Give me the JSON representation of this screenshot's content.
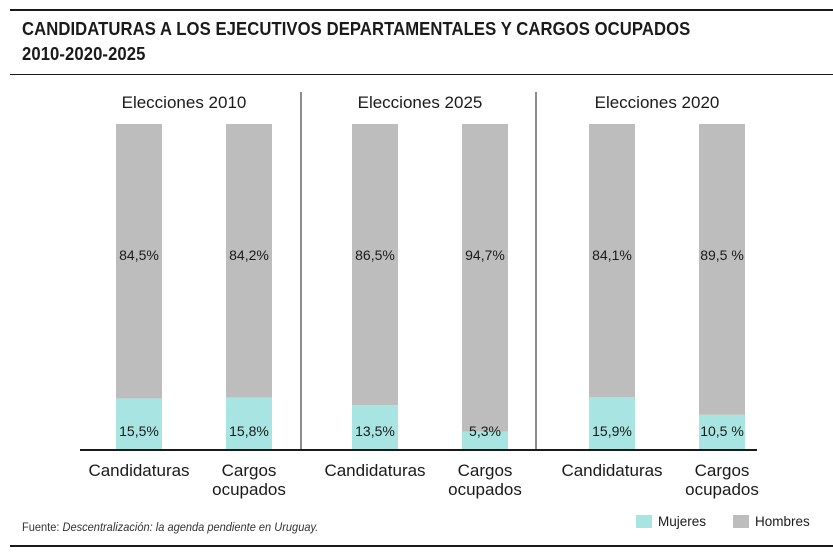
{
  "title": {
    "line1": "CANDIDATURAS A LOS EJECUTIVOS DEPARTAMENTALES Y CARGOS OCUPADOS",
    "line2": "2010-2020-2025"
  },
  "colors": {
    "mujeres": "#a8e4e1",
    "hombres": "#bdbdbd",
    "text": "#1a1a1a"
  },
  "chart_data": {
    "type": "bar",
    "stacked": true,
    "percent": true,
    "series_names": [
      "Mujeres",
      "Hombres"
    ],
    "groups": [
      {
        "title": "Elecciones 2010",
        "bars": [
          {
            "label": [
              "Candidaturas"
            ],
            "mujeres": 15.5,
            "hombres": 84.5,
            "mujeres_label": "15,5%",
            "hombres_label": "84,5%"
          },
          {
            "label": [
              "Cargos",
              "ocupados"
            ],
            "mujeres": 15.8,
            "hombres": 84.2,
            "mujeres_label": "15,8%",
            "hombres_label": "84,2%"
          }
        ]
      },
      {
        "title": "Elecciones 2025",
        "bars": [
          {
            "label": [
              "Candidaturas"
            ],
            "mujeres": 13.5,
            "hombres": 86.5,
            "mujeres_label": "13,5%",
            "hombres_label": "86,5%"
          },
          {
            "label": [
              "Cargos",
              "ocupados"
            ],
            "mujeres": 5.3,
            "hombres": 94.7,
            "mujeres_label": "5,3%",
            "hombres_label": "94,7%"
          }
        ]
      },
      {
        "title": "Elecciones 2020",
        "bars": [
          {
            "label": [
              "Candidaturas"
            ],
            "mujeres": 15.9,
            "hombres": 84.1,
            "mujeres_label": "15,9%",
            "hombres_label": "84,1%"
          },
          {
            "label": [
              "Cargos",
              "ocupados"
            ],
            "mujeres": 10.5,
            "hombres": 89.5,
            "mujeres_label": "10,5 %",
            "hombres_label": "89,5 %"
          }
        ]
      }
    ]
  },
  "legend": {
    "mujeres": "Mujeres",
    "hombres": "Hombres"
  },
  "footer": {
    "prefix": "Fuente: ",
    "italic1": "Descentralización:",
    "rest": " la agenda pendiente en Uruguay."
  }
}
